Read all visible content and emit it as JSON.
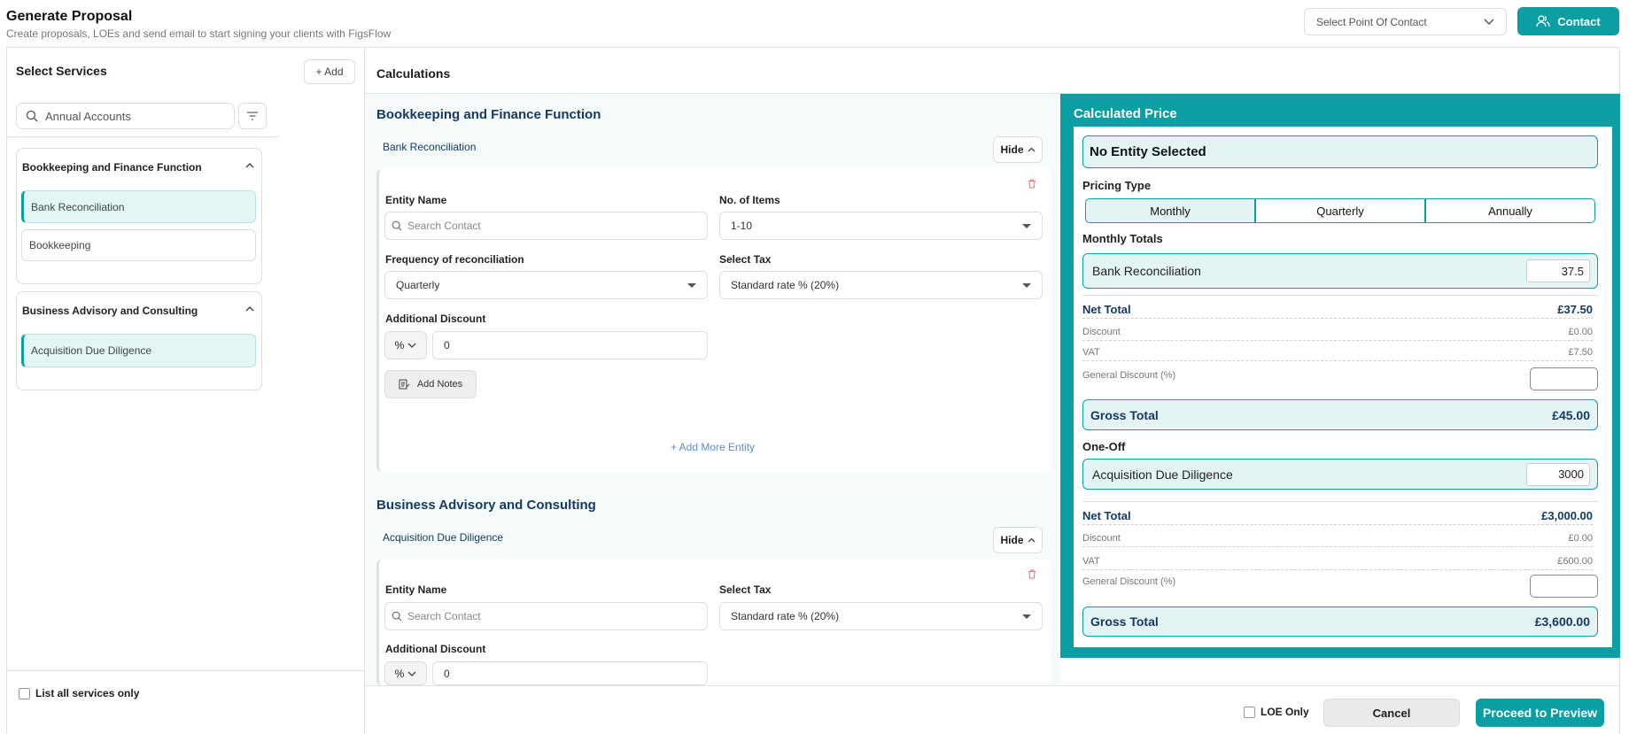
{
  "header": {
    "title": "Generate Proposal",
    "subtitle": "Create proposals, LOEs and send email to start signing your clients with FigsFlow",
    "point_of_contact_placeholder": "Select Point Of Contact",
    "contact_button": "Contact"
  },
  "sidebar": {
    "title": "Select Services",
    "add_button": "+ Add",
    "search_value": "Annual Accounts",
    "groups": [
      {
        "title": "Bookkeeping and Finance Function",
        "items": [
          {
            "label": "Bank Reconciliation",
            "selected": true
          },
          {
            "label": "Bookkeeping",
            "selected": false
          }
        ]
      },
      {
        "title": "Business Advisory and Consulting",
        "items": [
          {
            "label": "Acquisition Due Diligence",
            "selected": true
          }
        ]
      }
    ],
    "list_all_label": "List all services only"
  },
  "calculations": {
    "title": "Calculations",
    "sections": [
      {
        "title": "Bookkeeping and Finance Function",
        "service": "Bank Reconciliation",
        "hide_label": "Hide",
        "entity_label": "Entity Name",
        "entity_placeholder": "Search Contact",
        "items_label": "No. of Items",
        "items_value": "1-10",
        "frequency_label": "Frequency of reconciliation",
        "frequency_value": "Quarterly",
        "tax_label": "Select Tax",
        "tax_value": "Standard rate % (20%)",
        "discount_label": "Additional Discount",
        "discount_type": "%",
        "discount_value": "0",
        "notes_button": "Add Notes",
        "add_more": "+ Add More Entity"
      },
      {
        "title": "Business Advisory and Consulting",
        "service": "Acquisition Due Diligence",
        "hide_label": "Hide",
        "entity_label": "Entity Name",
        "entity_placeholder": "Search Contact",
        "tax_label": "Select Tax",
        "tax_value": "Standard rate % (20%)",
        "discount_label": "Additional Discount",
        "discount_type": "%",
        "discount_value": "0"
      }
    ]
  },
  "calculated_price": {
    "title": "Calculated Price",
    "entity": "No Entity Selected",
    "pricing_type_label": "Pricing Type",
    "pricing_types": [
      "Monthly",
      "Quarterly",
      "Annually"
    ],
    "active_pricing_type": "Monthly",
    "monthly": {
      "label": "Monthly Totals",
      "line_label": "Bank Reconciliation",
      "line_value": "37.5",
      "net_total_label": "Net Total",
      "net_total": "£37.50",
      "discount_label": "Discount",
      "discount": "£0.00",
      "vat_label": "VAT",
      "vat": "£7.50",
      "general_discount_label": "General Discount (%)",
      "gross_label": "Gross Total",
      "gross": "£45.00"
    },
    "one_off": {
      "label": "One-Off",
      "line_label": "Acquisition Due Diligence",
      "line_value": "3000",
      "net_total_label": "Net Total",
      "net_total": "£3,000.00",
      "discount_label": "Discount",
      "discount": "£0.00",
      "vat_label": "VAT",
      "vat": "£600.00",
      "general_discount_label": "General Discount (%)",
      "gross_label": "Gross Total",
      "gross": "£3,600.00"
    }
  },
  "footer": {
    "loe_only": "LOE Only",
    "cancel": "Cancel",
    "proceed": "Proceed to Preview"
  },
  "colors": {
    "accent": "#0b9ea3",
    "heading": "#143a63"
  }
}
